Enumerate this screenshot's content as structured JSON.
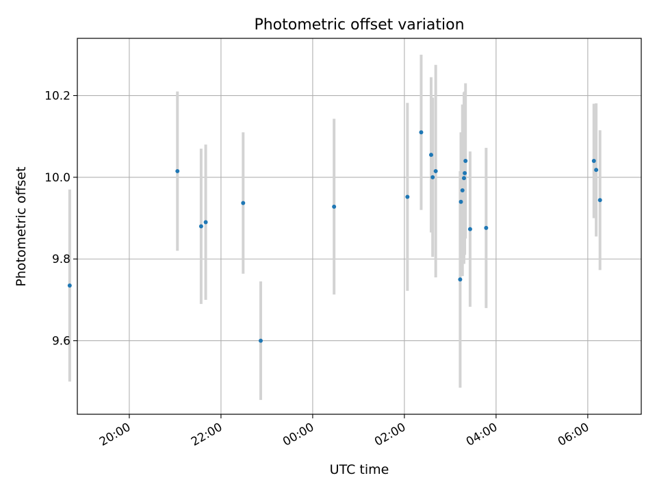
{
  "chart_data": {
    "type": "scatter",
    "title": "Photometric offset variation",
    "xlabel": "UTC time",
    "ylabel": "Photometric offset",
    "x_axis": "time",
    "x_ticks": [
      "20:00",
      "22:00",
      "00:00",
      "02:00",
      "04:00",
      "06:00"
    ],
    "y_ticks": [
      "9.6",
      "9.8",
      "10.0",
      "10.2"
    ],
    "xlim": [
      "18:52",
      "07:10"
    ],
    "ylim": [
      9.42,
      10.34
    ],
    "grid": true,
    "errorbar_color": "#d3d3d3",
    "point_color": "#1f77b4",
    "points": [
      {
        "t": "18:42",
        "y": 9.735,
        "err": 0.235
      },
      {
        "t": "21:03",
        "y": 10.015,
        "err": 0.195
      },
      {
        "t": "21:34",
        "y": 9.88,
        "err": 0.19
      },
      {
        "t": "21:40",
        "y": 9.89,
        "err": 0.19
      },
      {
        "t": "22:29",
        "y": 9.937,
        "err": 0.173
      },
      {
        "t": "22:52",
        "y": 9.6,
        "err": 0.145
      },
      {
        "t": "00:28",
        "y": 9.928,
        "err": 0.215
      },
      {
        "t": "02:04",
        "y": 9.952,
        "err": 0.23
      },
      {
        "t": "02:22",
        "y": 10.11,
        "err": 0.19
      },
      {
        "t": "02:35",
        "y": 10.055,
        "err": 0.19
      },
      {
        "t": "02:37",
        "y": 10.0,
        "err": 0.195
      },
      {
        "t": "02:41",
        "y": 10.015,
        "err": 0.26
      },
      {
        "t": "03:13",
        "y": 9.75,
        "err": 0.265
      },
      {
        "t": "03:14",
        "y": 9.94,
        "err": 0.17
      },
      {
        "t": "03:16",
        "y": 9.968,
        "err": 0.21
      },
      {
        "t": "03:18",
        "y": 9.998,
        "err": 0.21
      },
      {
        "t": "03:19",
        "y": 10.01,
        "err": 0.2
      },
      {
        "t": "03:20",
        "y": 10.04,
        "err": 0.19
      },
      {
        "t": "03:26",
        "y": 9.873,
        "err": 0.19
      },
      {
        "t": "03:47",
        "y": 9.876,
        "err": 0.196
      },
      {
        "t": "06:08",
        "y": 10.04,
        "err": 0.14
      },
      {
        "t": "06:11",
        "y": 10.018,
        "err": 0.163
      },
      {
        "t": "06:16",
        "y": 9.944,
        "err": 0.171
      }
    ]
  }
}
